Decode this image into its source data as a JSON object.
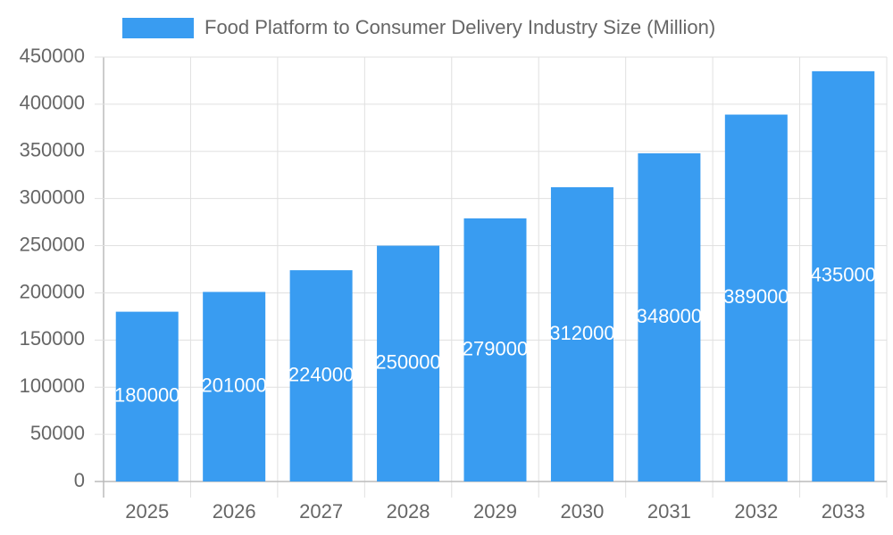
{
  "chart_data": {
    "type": "bar",
    "categories": [
      "2025",
      "2026",
      "2027",
      "2028",
      "2029",
      "2030",
      "2031",
      "2032",
      "2033"
    ],
    "series": [
      {
        "name": "Food Platform to Consumer Delivery Industry Size (Million)",
        "color": "#399cf1",
        "values": [
          180000,
          201000,
          224000,
          250000,
          279000,
          312000,
          348000,
          389000,
          435000
        ]
      }
    ],
    "ylim": [
      0,
      450000
    ],
    "yticks": [
      0,
      50000,
      100000,
      150000,
      200000,
      250000,
      300000,
      350000,
      400000,
      450000
    ],
    "grid": true
  }
}
